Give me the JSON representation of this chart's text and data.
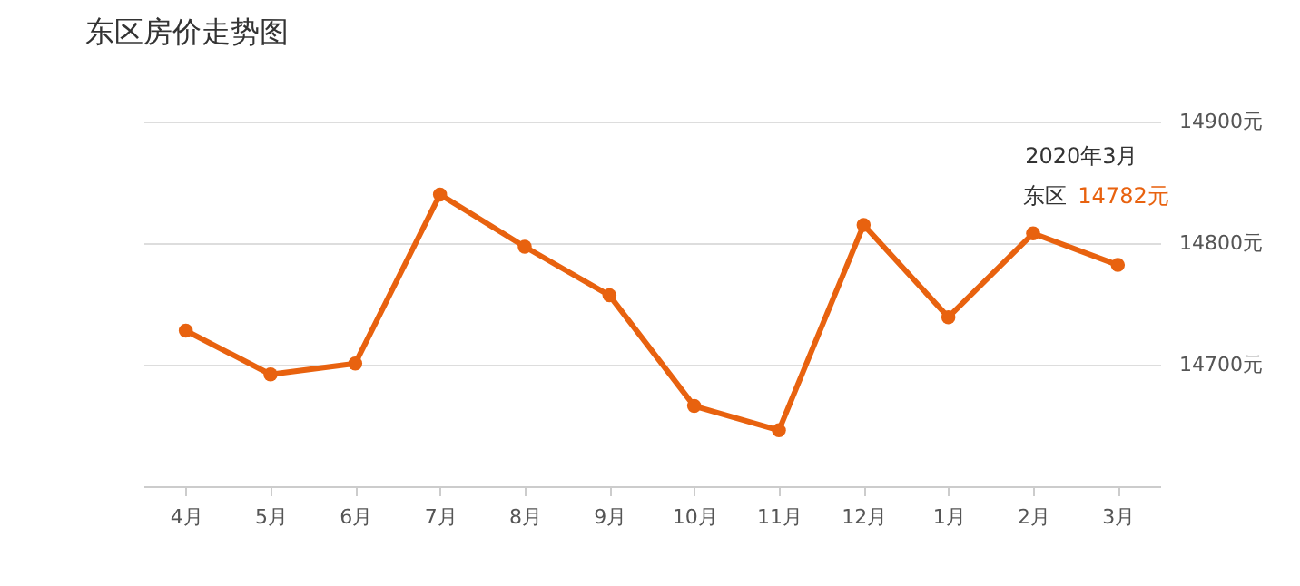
{
  "chart_data": {
    "type": "line",
    "title": "东区房价走势图",
    "categories": [
      "4月",
      "5月",
      "6月",
      "7月",
      "8月",
      "9月",
      "10月",
      "11月",
      "12月",
      "1月",
      "2月",
      "3月"
    ],
    "series": [
      {
        "name": "东区",
        "color": "#e8620f",
        "values": [
          14728,
          14692,
          14701,
          14840,
          14797,
          14757,
          14666,
          14646,
          14815,
          14739,
          14808,
          14782
        ]
      }
    ],
    "ylim": [
      14600,
      14900
    ],
    "yticks": [
      {
        "value": 14600,
        "label": null
      },
      {
        "value": 14700,
        "label": "14700元"
      },
      {
        "value": 14800,
        "label": "14800元"
      },
      {
        "value": 14900,
        "label": "14900元"
      }
    ],
    "grid": "y",
    "marker": "circle",
    "line_style": "solid",
    "annotations": [
      "2020年3月",
      {
        "text": "14782元",
        "x": "3月",
        "y": 14782
      }
    ]
  }
}
